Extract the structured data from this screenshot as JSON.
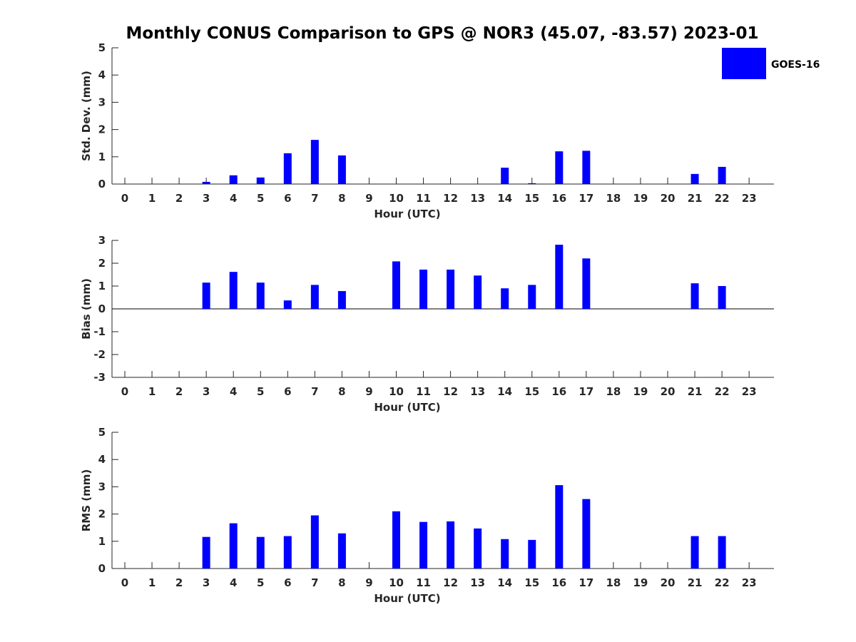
{
  "title": "Monthly CONUS Comparison to GPS @ NOR3 (45.07, -83.57) 2023-01",
  "legend": {
    "label": "GOES-16",
    "color": "#0000ff",
    "position": "top-right"
  },
  "chart_data": [
    {
      "type": "bar",
      "ylabel": "Std. Dev. (mm)",
      "xlabel": "Hour (UTC)",
      "ylim": [
        0,
        5
      ],
      "yticks": [
        "0",
        "1",
        "2",
        "3",
        "4",
        "5"
      ],
      "categories": [
        "0",
        "1",
        "2",
        "3",
        "4",
        "5",
        "6",
        "7",
        "8",
        "9",
        "10",
        "11",
        "12",
        "13",
        "14",
        "15",
        "16",
        "17",
        "18",
        "19",
        "20",
        "21",
        "22",
        "23"
      ],
      "series": [
        {
          "name": "GOES-16",
          "values": [
            null,
            null,
            null,
            0.08,
            0.32,
            0.24,
            1.13,
            1.62,
            1.05,
            null,
            null,
            null,
            null,
            null,
            0.6,
            0.03,
            1.2,
            1.22,
            null,
            null,
            null,
            0.37,
            0.63,
            null
          ]
        }
      ],
      "grid": false
    },
    {
      "type": "bar",
      "ylabel": "Bias (mm)",
      "xlabel": "Hour (UTC)",
      "ylim": [
        -3,
        3
      ],
      "yticks": [
        "-3",
        "-2",
        "-1",
        "0",
        "1",
        "2",
        "3"
      ],
      "categories": [
        "0",
        "1",
        "2",
        "3",
        "4",
        "5",
        "6",
        "7",
        "8",
        "9",
        "10",
        "11",
        "12",
        "13",
        "14",
        "15",
        "16",
        "17",
        "18",
        "19",
        "20",
        "21",
        "22",
        "23"
      ],
      "series": [
        {
          "name": "GOES-16",
          "values": [
            null,
            null,
            null,
            1.15,
            1.62,
            1.15,
            0.37,
            1.05,
            0.78,
            null,
            2.08,
            1.72,
            1.72,
            1.46,
            0.9,
            1.05,
            2.81,
            2.21,
            null,
            null,
            null,
            1.12,
            1.0,
            null
          ]
        }
      ],
      "grid": false,
      "zero_line": true
    },
    {
      "type": "bar",
      "ylabel": "RMS (mm)",
      "xlabel": "Hour (UTC)",
      "ylim": [
        0,
        5
      ],
      "yticks": [
        "0",
        "1",
        "2",
        "3",
        "4",
        "5"
      ],
      "categories": [
        "0",
        "1",
        "2",
        "3",
        "4",
        "5",
        "6",
        "7",
        "8",
        "9",
        "10",
        "11",
        "12",
        "13",
        "14",
        "15",
        "16",
        "17",
        "18",
        "19",
        "20",
        "21",
        "22",
        "23"
      ],
      "series": [
        {
          "name": "GOES-16",
          "values": [
            null,
            null,
            null,
            1.16,
            1.66,
            1.16,
            1.19,
            1.95,
            1.29,
            null,
            2.1,
            1.71,
            1.73,
            1.47,
            1.08,
            1.05,
            3.06,
            2.55,
            null,
            null,
            null,
            1.19,
            1.19,
            null
          ]
        }
      ],
      "grid": false
    }
  ]
}
